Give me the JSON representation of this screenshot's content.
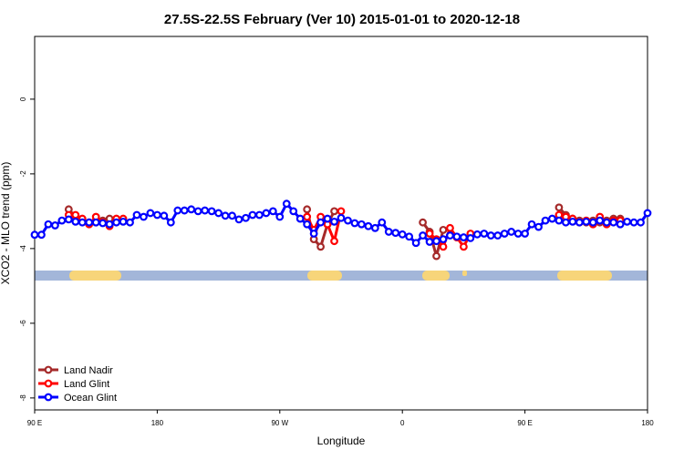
{
  "chart_data": {
    "type": "line",
    "title": "27.5S-22.5S February (Ver 10)   2015-01-01 to 2020-12-18",
    "x_label": "Longitude",
    "y_label": "XCO2 - MLO trend (ppm)",
    "x": [
      90,
      95,
      100,
      105,
      110,
      115,
      120,
      125,
      130,
      135,
      140,
      145,
      150,
      155,
      160,
      165,
      170,
      175,
      180,
      185,
      190,
      195,
      200,
      205,
      210,
      215,
      220,
      225,
      230,
      235,
      240,
      245,
      250,
      255,
      260,
      265,
      270,
      275,
      280,
      285,
      290,
      295,
      300,
      305,
      310,
      315,
      320,
      325,
      330,
      335,
      340,
      345,
      350,
      355,
      360,
      365,
      370,
      375,
      380,
      385,
      390,
      395,
      400,
      405,
      410,
      415,
      420,
      425,
      430,
      435,
      440,
      445,
      450,
      455,
      460,
      465,
      470,
      475,
      480,
      485,
      490,
      495,
      500,
      505,
      510,
      515,
      520,
      525,
      530,
      535,
      540
    ],
    "xlim": [
      90,
      540
    ],
    "xticks": [
      {
        "value": 90,
        "label": "90 E"
      },
      {
        "value": 180,
        "label": "180"
      },
      {
        "value": 270,
        "label": "90 W"
      },
      {
        "value": 360,
        "label": "0"
      },
      {
        "value": 450,
        "label": "90 E"
      },
      {
        "value": 540,
        "label": "180"
      }
    ],
    "ylim": [
      -8.32,
      1.68
    ],
    "yticks": [
      0,
      -2,
      -4,
      -6,
      -8
    ],
    "legend": "bottom-left",
    "series": [
      {
        "name": "Land Nadir",
        "color": "#a52a2a",
        "values": [
          null,
          null,
          null,
          null,
          null,
          -2.95,
          -3.15,
          -3.25,
          -3.3,
          -3.3,
          -3.25,
          -3.2,
          -3.25,
          null,
          null,
          null,
          null,
          null,
          null,
          null,
          null,
          null,
          null,
          null,
          null,
          null,
          null,
          null,
          null,
          null,
          null,
          null,
          null,
          null,
          null,
          null,
          null,
          null,
          null,
          null,
          -2.95,
          -3.75,
          -3.95,
          -3.35,
          -3.0,
          null,
          null,
          null,
          null,
          null,
          null,
          null,
          null,
          null,
          null,
          null,
          null,
          -3.3,
          -3.55,
          -4.2,
          -3.5,
          null,
          null,
          null,
          null,
          null,
          null,
          null,
          null,
          null,
          null,
          null,
          null,
          null,
          null,
          null,
          null,
          -2.9,
          -3.1,
          -3.2,
          -3.25,
          -3.3,
          -3.25,
          -3.3,
          -3.25,
          -3.2,
          -3.2,
          null,
          null,
          null,
          null
        ]
      },
      {
        "name": "Land Glint",
        "color": "#ff0000",
        "values": [
          null,
          null,
          null,
          null,
          null,
          -3.1,
          -3.1,
          -3.2,
          -3.35,
          -3.15,
          -3.3,
          -3.4,
          -3.2,
          -3.2,
          null,
          null,
          null,
          null,
          null,
          null,
          null,
          null,
          null,
          null,
          null,
          null,
          null,
          null,
          null,
          null,
          null,
          null,
          null,
          null,
          null,
          null,
          null,
          null,
          null,
          null,
          -3.15,
          -3.5,
          -3.15,
          -3.35,
          -3.8,
          -3.0,
          null,
          null,
          null,
          null,
          null,
          null,
          null,
          null,
          null,
          null,
          null,
          null,
          -3.6,
          -3.75,
          -3.95,
          -3.45,
          -3.7,
          -3.95,
          -3.6,
          null,
          null,
          null,
          null,
          null,
          null,
          null,
          null,
          null,
          null,
          null,
          null,
          -3.1,
          -3.15,
          -3.2,
          -3.3,
          -3.25,
          -3.35,
          -3.15,
          -3.35,
          -3.25,
          -3.25,
          null,
          null,
          null,
          null
        ]
      },
      {
        "name": "Ocean Glint",
        "color": "#0000ff",
        "values": [
          -3.63,
          -3.63,
          -3.35,
          -3.38,
          -3.25,
          -3.22,
          -3.28,
          -3.3,
          -3.3,
          -3.3,
          -3.32,
          -3.35,
          -3.3,
          -3.28,
          -3.3,
          -3.1,
          -3.15,
          -3.05,
          -3.1,
          -3.12,
          -3.3,
          -2.98,
          -2.98,
          -2.95,
          -3.0,
          -2.98,
          -3.0,
          -3.05,
          -3.12,
          -3.12,
          -3.22,
          -3.18,
          -3.1,
          -3.1,
          -3.05,
          -3.0,
          -3.15,
          -2.8,
          -3.0,
          -3.2,
          -3.35,
          -3.6,
          -3.3,
          -3.2,
          -3.28,
          -3.18,
          -3.25,
          -3.32,
          -3.35,
          -3.4,
          -3.45,
          -3.3,
          -3.55,
          -3.58,
          -3.62,
          -3.68,
          -3.85,
          -3.65,
          -3.82,
          -3.8,
          -3.75,
          -3.65,
          -3.68,
          -3.7,
          -3.72,
          -3.62,
          -3.6,
          -3.65,
          -3.65,
          -3.6,
          -3.55,
          -3.6,
          -3.6,
          -3.35,
          -3.42,
          -3.25,
          -3.2,
          -3.25,
          -3.3,
          -3.28,
          -3.3,
          -3.28,
          -3.3,
          -3.25,
          -3.3,
          -3.3,
          -3.35,
          -3.28,
          -3.3,
          -3.3,
          -3.05
        ]
      }
    ]
  }
}
